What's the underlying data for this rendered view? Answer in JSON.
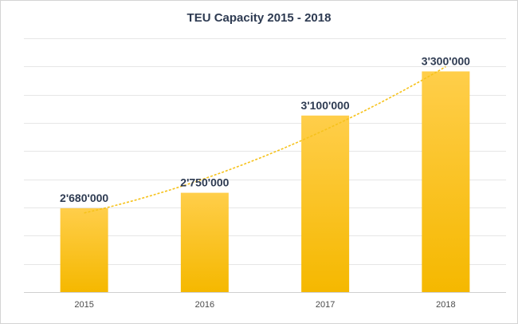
{
  "chart_data": {
    "type": "bar",
    "title": "TEU Capacity 2015 - 2018",
    "categories": [
      "2015",
      "2016",
      "2017",
      "2018"
    ],
    "values": [
      2680000,
      2750000,
      3100000,
      3300000
    ],
    "data_labels": [
      "2'680'000",
      "2'750'000",
      "3'100'000",
      "3'300'000"
    ],
    "ylim": [
      2300000,
      3450000
    ],
    "xlabel": "",
    "ylabel": "",
    "grid": true,
    "trendline": "polynomial",
    "colors": {
      "bar_top": "#ffce4a",
      "bar_bottom": "#f5b800",
      "trendline": "#f6c21b",
      "text": "#2e3b52"
    }
  }
}
